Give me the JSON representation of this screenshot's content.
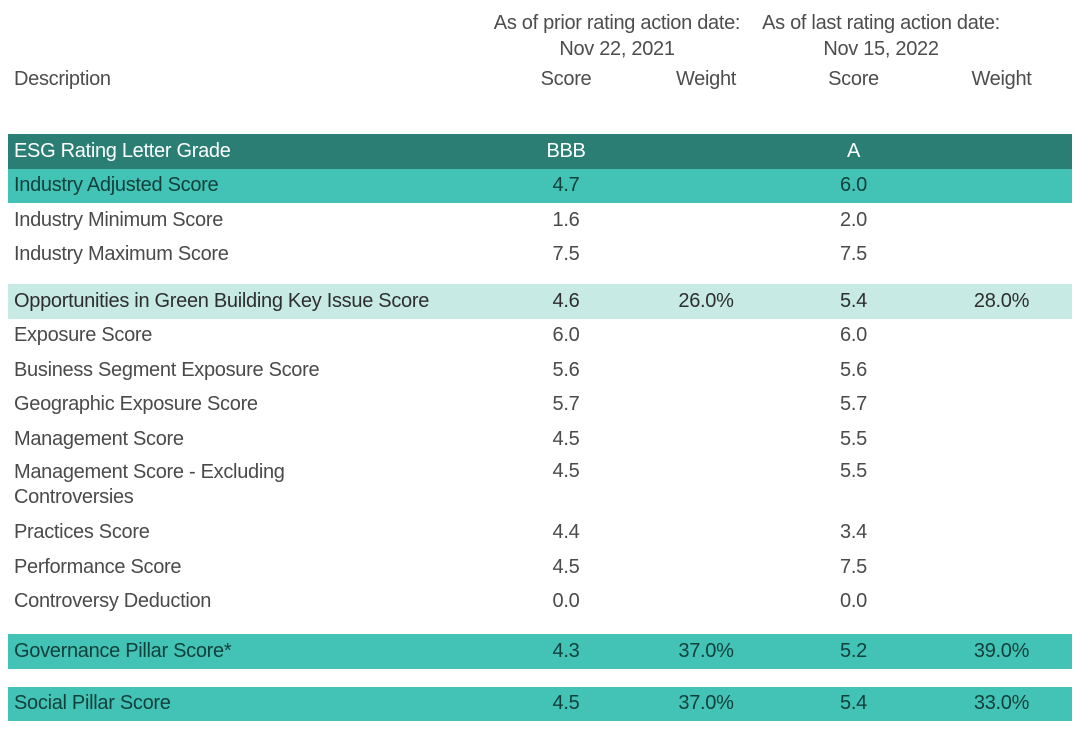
{
  "header": {
    "description_label": "Description",
    "group1": {
      "line1": "As of prior rating action date:",
      "line2": "Nov 22, 2021"
    },
    "group2": {
      "line1": "As of last rating action date:",
      "line2": "Nov 15, 2022"
    },
    "sub_columns": [
      "Score",
      "Weight",
      "Score",
      "Weight"
    ]
  },
  "colors": {
    "dark_teal_row": "#2a7e73",
    "teal_row": "#43c3b6",
    "pale_teal_row": "#c7eae5",
    "text_on_dark": "#ffffff",
    "text_on_teal": "#113f3a",
    "body_text": "#4a4a4a",
    "background": "#ffffff"
  },
  "rows": [
    {
      "kind": "grade",
      "label": "ESG Rating Letter Grade",
      "score1": "BBB",
      "weight1": "",
      "score2": "A",
      "weight2": ""
    },
    {
      "kind": "highlight",
      "label": "Industry Adjusted Score",
      "score1": "4.7",
      "weight1": "",
      "score2": "6.0",
      "weight2": ""
    },
    {
      "kind": "plain",
      "label": "Industry Minimum Score",
      "score1": "1.6",
      "weight1": "",
      "score2": "2.0",
      "weight2": ""
    },
    {
      "kind": "plain",
      "label": "Industry Maximum Score",
      "score1": "7.5",
      "weight1": "",
      "score2": "7.5",
      "weight2": ""
    },
    {
      "kind": "gap",
      "height": 12
    },
    {
      "kind": "keyissue",
      "label": "Opportunities in Green Building Key Issue Score",
      "score1": "4.6",
      "weight1": "26.0%",
      "score2": "5.4",
      "weight2": "28.0%"
    },
    {
      "kind": "plain",
      "label": "Exposure Score",
      "score1": "6.0",
      "weight1": "",
      "score2": "6.0",
      "weight2": ""
    },
    {
      "kind": "plain",
      "label": "Business Segment Exposure Score",
      "score1": "5.6",
      "weight1": "",
      "score2": "5.6",
      "weight2": ""
    },
    {
      "kind": "plain",
      "label": "Geographic Exposure Score",
      "score1": "5.7",
      "weight1": "",
      "score2": "5.7",
      "weight2": ""
    },
    {
      "kind": "plain",
      "label": "Management Score",
      "score1": "4.5",
      "weight1": "",
      "score2": "5.5",
      "weight2": ""
    },
    {
      "kind": "plain",
      "label": "Management Score - Excluding\nControversies",
      "score1": "4.5",
      "weight1": "",
      "score2": "5.5",
      "weight2": ""
    },
    {
      "kind": "plain",
      "label": "Practices Score",
      "score1": "4.4",
      "weight1": "",
      "score2": "3.4",
      "weight2": ""
    },
    {
      "kind": "plain",
      "label": "Performance Score",
      "score1": "4.5",
      "weight1": "",
      "score2": "7.5",
      "weight2": ""
    },
    {
      "kind": "plain",
      "label": "Controversy Deduction",
      "score1": "0.0",
      "weight1": "",
      "score2": "0.0",
      "weight2": ""
    },
    {
      "kind": "gap",
      "height": 15
    },
    {
      "kind": "highlight",
      "label": "Governance Pillar Score*",
      "score1": "4.3",
      "weight1": "37.0%",
      "score2": "5.2",
      "weight2": "39.0%"
    },
    {
      "kind": "gap",
      "height": 18
    },
    {
      "kind": "highlight",
      "label": "Social Pillar Score",
      "score1": "4.5",
      "weight1": "37.0%",
      "score2": "5.4",
      "weight2": "33.0%"
    }
  ]
}
